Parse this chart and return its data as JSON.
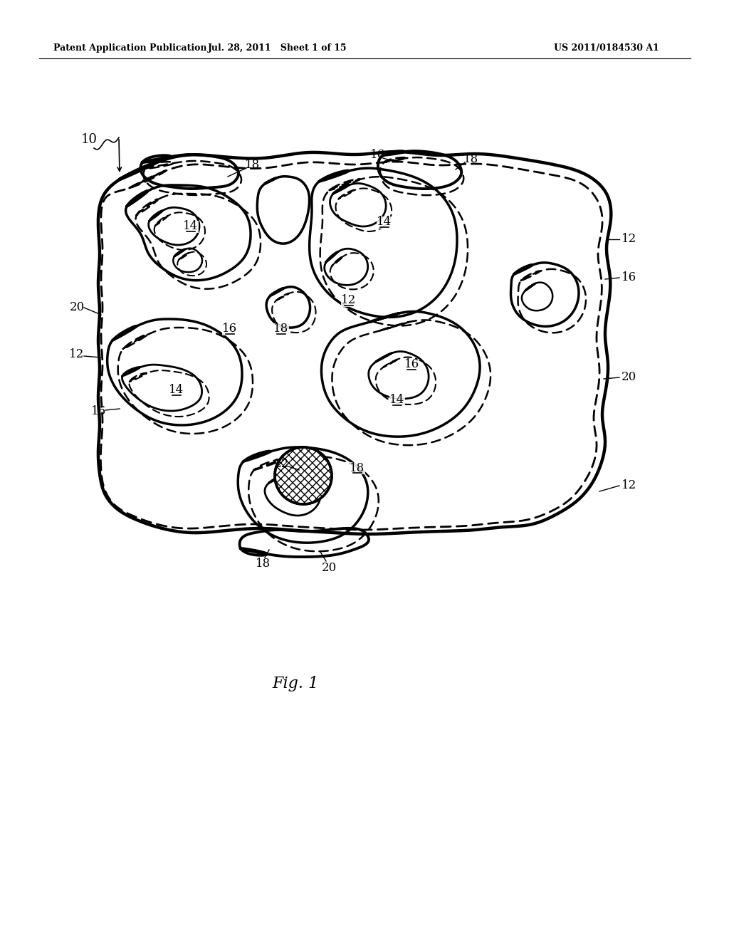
{
  "header_left": "Patent Application Publication",
  "header_mid": "Jul. 28, 2011   Sheet 1 of 15",
  "header_right": "US 2011/0184530 A1",
  "figure_label": "Fig. 1",
  "bg_color": "#ffffff",
  "line_color": "#000000"
}
